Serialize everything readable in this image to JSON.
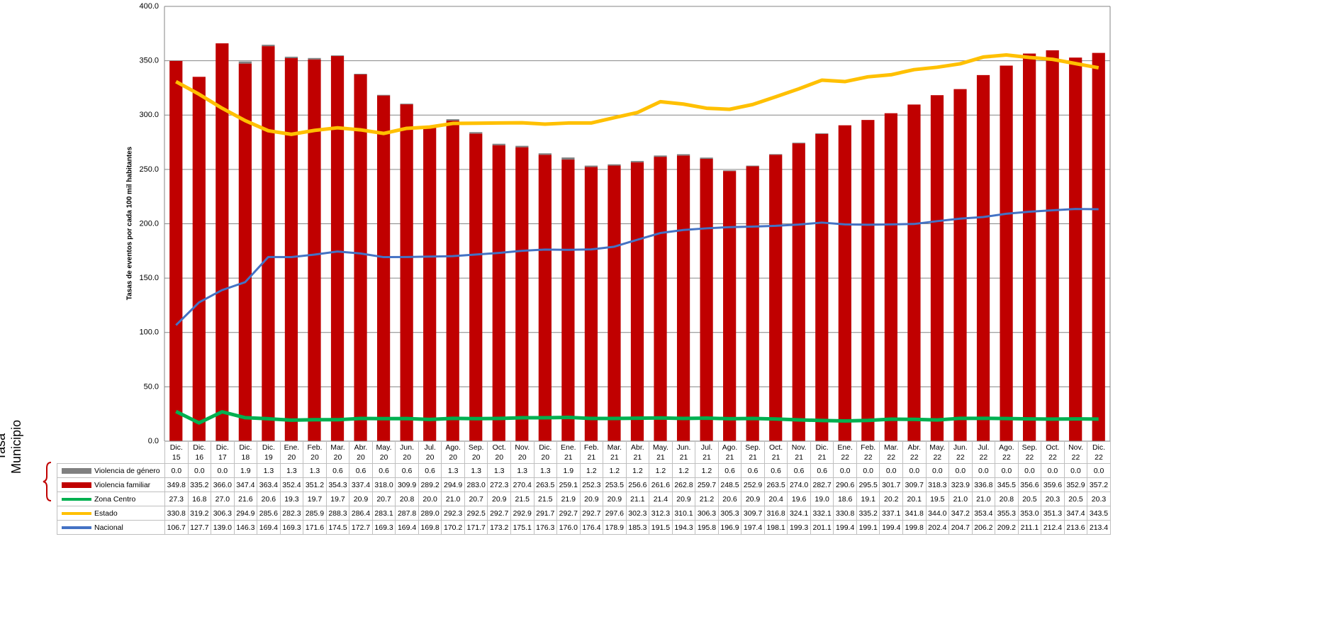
{
  "chart_data": {
    "type": "bar",
    "y_axis_label": "Tasas de eventos por cada 100 mil habitantes",
    "row_group_label": "Tasa Municipio",
    "categories": [
      "Dic. 15",
      "Dic. 16",
      "Dic. 17",
      "Dic. 18",
      "Dic. 19",
      "Ene. 20",
      "Feb. 20",
      "Mar. 20",
      "Abr. 20",
      "May. 20",
      "Jun. 20",
      "Jul. 20",
      "Ago. 20",
      "Sep. 20",
      "Oct. 20",
      "Nov. 20",
      "Dic. 20",
      "Ene. 21",
      "Feb. 21",
      "Mar. 21",
      "Abr. 21",
      "May. 21",
      "Jun. 21",
      "Jul. 21",
      "Ago. 21",
      "Sep. 21",
      "Oct. 21",
      "Nov. 21",
      "Dic. 21",
      "Ene. 22",
      "Feb. 22",
      "Mar. 22",
      "Abr. 22",
      "May. 22",
      "Jun. 22",
      "Jul. 22",
      "Ago. 22",
      "Sep. 22",
      "Oct. 22",
      "Nov. 22",
      "Dic. 22"
    ],
    "ylim": [
      0,
      400
    ],
    "yticks": [
      {
        "value": 0,
        "label": "0.0"
      },
      {
        "value": 50,
        "label": "50.0"
      },
      {
        "value": 100,
        "label": "100.0"
      },
      {
        "value": 150,
        "label": "150.0"
      },
      {
        "value": 200,
        "label": "200.0"
      },
      {
        "value": 250,
        "label": "250.0"
      },
      {
        "value": 300,
        "label": "300.0"
      },
      {
        "value": 350,
        "label": "350.0"
      },
      {
        "value": 400,
        "label": "400.0"
      }
    ],
    "grid": true,
    "stacked": true,
    "series": [
      {
        "name": "Violencia de género",
        "type": "bar",
        "color": "#808080",
        "values": [
          0,
          0,
          0,
          1.9,
          1.3,
          1.3,
          1.3,
          0.6,
          0.6,
          0.6,
          0.6,
          0.6,
          1.3,
          1.3,
          1.3,
          1.3,
          1.3,
          1.9,
          1.2,
          1.2,
          1.2,
          1.2,
          1.2,
          1.2,
          0.6,
          0.6,
          0.6,
          0.6,
          0.6,
          0,
          0,
          0,
          0,
          0,
          0,
          0,
          0,
          0,
          0,
          0,
          0
        ],
        "value_labels": [
          "0.0",
          "0.0",
          "0.0",
          "1.9",
          "1.3",
          "1.3",
          "1.3",
          "0.6",
          "0.6",
          "0.6",
          "0.6",
          "0.6",
          "1.3",
          "1.3",
          "1.3",
          "1.3",
          "1.3",
          "1.9",
          "1.2",
          "1.2",
          "1.2",
          "1.2",
          "1.2",
          "1.2",
          "0.6",
          "0.6",
          "0.6",
          "0.6",
          "0.6",
          "0.0",
          "0.0",
          "0.0",
          "0.0",
          "0.0",
          "0.0",
          "0.0",
          "0.0",
          "0.0",
          "0.0",
          "0.0",
          "0.0"
        ]
      },
      {
        "name": "Violencia familiar",
        "type": "bar",
        "color": "#c00000",
        "values": [
          349.8,
          335.2,
          366,
          347.4,
          363.4,
          352.4,
          351.2,
          354.3,
          337.4,
          318,
          309.9,
          289.2,
          294.9,
          283,
          272.3,
          270.4,
          263.5,
          259.1,
          252.3,
          253.5,
          256.6,
          261.6,
          262.8,
          259.7,
          248.5,
          252.9,
          263.5,
          274,
          282.7,
          290.6,
          295.5,
          301.7,
          309.7,
          318.3,
          323.9,
          336.8,
          345.5,
          356.6,
          359.6,
          352.9,
          357.2
        ],
        "value_labels": [
          "349.8",
          "335.2",
          "366.0",
          "347.4",
          "363.4",
          "352.4",
          "351.2",
          "354.3",
          "337.4",
          "318.0",
          "309.9",
          "289.2",
          "294.9",
          "283.0",
          "272.3",
          "270.4",
          "263.5",
          "259.1",
          "252.3",
          "253.5",
          "256.6",
          "261.6",
          "262.8",
          "259.7",
          "248.5",
          "252.9",
          "263.5",
          "274.0",
          "282.7",
          "290.6",
          "295.5",
          "301.7",
          "309.7",
          "318.3",
          "323.9",
          "336.8",
          "345.5",
          "356.6",
          "359.6",
          "352.9",
          "357.2"
        ]
      },
      {
        "name": "Zona Centro",
        "type": "line",
        "color": "#00b050",
        "values": [
          27.3,
          16.8,
          27,
          21.6,
          20.6,
          19.3,
          19.7,
          19.7,
          20.9,
          20.7,
          20.8,
          20,
          21,
          20.7,
          20.9,
          21.5,
          21.5,
          21.9,
          20.9,
          20.9,
          21.1,
          21.4,
          20.9,
          21.2,
          20.6,
          20.9,
          20.4,
          19.6,
          19,
          18.6,
          19.1,
          20.2,
          20.1,
          19.5,
          21,
          21,
          20.8,
          20.5,
          20.3,
          20.5,
          20.3
        ],
        "value_labels": [
          "27.3",
          "16.8",
          "27.0",
          "21.6",
          "20.6",
          "19.3",
          "19.7",
          "19.7",
          "20.9",
          "20.7",
          "20.8",
          "20.0",
          "21.0",
          "20.7",
          "20.9",
          "21.5",
          "21.5",
          "21.9",
          "20.9",
          "20.9",
          "21.1",
          "21.4",
          "20.9",
          "21.2",
          "20.6",
          "20.9",
          "20.4",
          "19.6",
          "19.0",
          "18.6",
          "19.1",
          "20.2",
          "20.1",
          "19.5",
          "21.0",
          "21.0",
          "20.8",
          "20.5",
          "20.3",
          "20.5",
          "20.3"
        ]
      },
      {
        "name": "Estado",
        "type": "line",
        "color": "#ffc000",
        "values": [
          330.8,
          319.2,
          306.3,
          294.9,
          285.6,
          282.3,
          285.9,
          288.3,
          286.4,
          283.1,
          287.8,
          289,
          292.3,
          292.5,
          292.7,
          292.9,
          291.7,
          292.7,
          292.7,
          297.6,
          302.3,
          312.3,
          310.1,
          306.3,
          305.3,
          309.7,
          316.8,
          324.1,
          332.1,
          330.8,
          335.2,
          337.1,
          341.8,
          344,
          347.2,
          353.4,
          355.3,
          353,
          351.3,
          347.4,
          343.5
        ],
        "value_labels": [
          "330.8",
          "319.2",
          "306.3",
          "294.9",
          "285.6",
          "282.3",
          "285.9",
          "288.3",
          "286.4",
          "283.1",
          "287.8",
          "289.0",
          "292.3",
          "292.5",
          "292.7",
          "292.9",
          "291.7",
          "292.7",
          "292.7",
          "297.6",
          "302.3",
          "312.3",
          "310.1",
          "306.3",
          "305.3",
          "309.7",
          "316.8",
          "324.1",
          "332.1",
          "330.8",
          "335.2",
          "337.1",
          "341.8",
          "344.0",
          "347.2",
          "353.4",
          "355.3",
          "353.0",
          "351.3",
          "347.4",
          "343.5"
        ]
      },
      {
        "name": "Nacional",
        "type": "line",
        "color": "#4472c4",
        "values": [
          106.7,
          127.7,
          139,
          146.3,
          169.4,
          169.3,
          171.6,
          174.5,
          172.7,
          169.3,
          169.4,
          169.8,
          170.2,
          171.7,
          173.2,
          175.1,
          176.3,
          176,
          176.4,
          178.9,
          185.3,
          191.5,
          194.3,
          195.8,
          196.9,
          197.4,
          198.1,
          199.3,
          201.1,
          199.4,
          199.1,
          199.4,
          199.8,
          202.4,
          204.7,
          206.2,
          209.2,
          211.1,
          212.4,
          213.6,
          213.4
        ],
        "value_labels": [
          "106.7",
          "127.7",
          "139.0",
          "146.3",
          "169.4",
          "169.3",
          "171.6",
          "174.5",
          "172.7",
          "169.3",
          "169.4",
          "169.8",
          "170.2",
          "171.7",
          "173.2",
          "175.1",
          "176.3",
          "176.0",
          "176.4",
          "178.9",
          "185.3",
          "191.5",
          "194.3",
          "195.8",
          "196.9",
          "197.4",
          "198.1",
          "199.3",
          "201.1",
          "199.4",
          "199.1",
          "199.4",
          "199.8",
          "202.4",
          "204.7",
          "206.2",
          "209.2",
          "211.1",
          "212.4",
          "213.6",
          "213.4"
        ]
      }
    ]
  }
}
